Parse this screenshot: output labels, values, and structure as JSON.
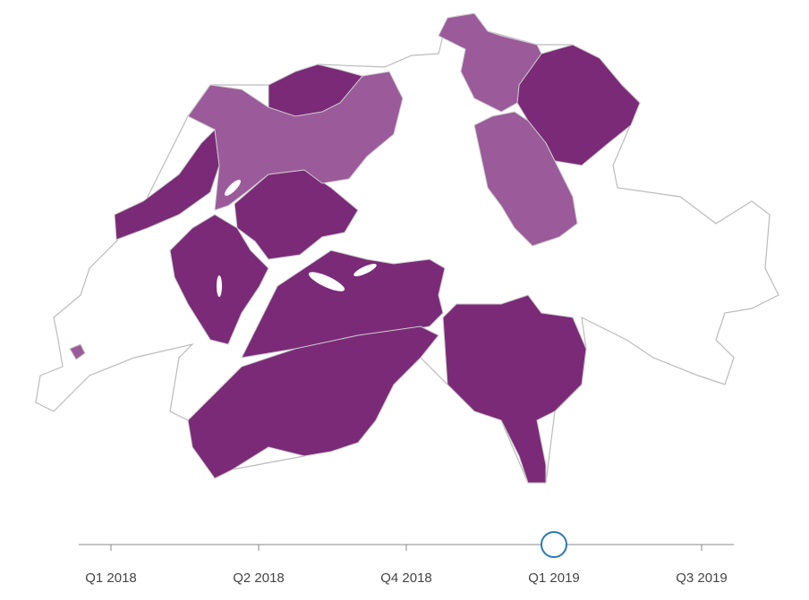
{
  "timeline": {
    "labels": [
      "Q1 2018",
      "Q2 2018",
      "Q4 2018",
      "Q1 2019",
      "Q3 2019"
    ],
    "selected": 3
  }
}
